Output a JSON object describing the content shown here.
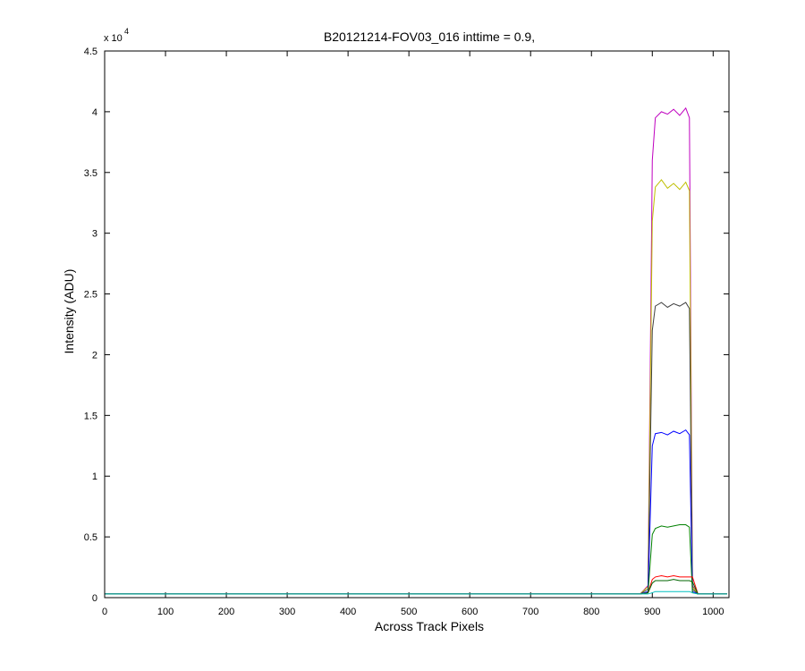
{
  "chart_data": {
    "type": "line",
    "title": "B20121214-FOV03_016 inttime = 0.9,",
    "x_label": "Across Track Pixels",
    "y_label": "Intensity (ADU)",
    "y_multiplier": "x 10",
    "y_exponent": "4",
    "x": [
      0,
      300,
      600,
      880,
      893,
      900,
      905,
      915,
      925,
      935,
      945,
      955,
      961,
      966,
      975,
      1023
    ],
    "series": [
      {
        "color": "#bf00bf",
        "values": [
          0.03,
          0.03,
          0.03,
          0.03,
          0.1,
          3.6,
          3.95,
          4.0,
          3.98,
          4.02,
          3.97,
          4.03,
          3.95,
          0.1,
          0.03,
          0.03
        ]
      },
      {
        "color": "#bfbf00",
        "values": [
          0.03,
          0.03,
          0.03,
          0.03,
          0.09,
          3.1,
          3.38,
          3.44,
          3.37,
          3.41,
          3.36,
          3.42,
          3.35,
          0.09,
          0.03,
          0.03
        ]
      },
      {
        "color": "#404040",
        "values": [
          0.03,
          0.03,
          0.03,
          0.03,
          0.07,
          2.2,
          2.4,
          2.43,
          2.39,
          2.42,
          2.4,
          2.43,
          2.38,
          0.07,
          0.03,
          0.03
        ]
      },
      {
        "color": "#0000ff",
        "values": [
          0.03,
          0.03,
          0.03,
          0.03,
          0.05,
          1.25,
          1.35,
          1.36,
          1.34,
          1.37,
          1.35,
          1.38,
          1.34,
          0.05,
          0.03,
          0.03
        ]
      },
      {
        "color": "#008000",
        "values": [
          0.03,
          0.03,
          0.03,
          0.03,
          0.04,
          0.52,
          0.57,
          0.59,
          0.58,
          0.59,
          0.6,
          0.6,
          0.58,
          0.04,
          0.03,
          0.03
        ]
      },
      {
        "color": "#ff0000",
        "values": [
          0.03,
          0.03,
          0.03,
          0.03,
          0.04,
          0.15,
          0.17,
          0.18,
          0.17,
          0.18,
          0.17,
          0.17,
          0.17,
          0.17,
          0.03,
          0.03
        ]
      },
      {
        "color": "#006400",
        "values": [
          0.03,
          0.03,
          0.03,
          0.03,
          0.04,
          0.12,
          0.14,
          0.14,
          0.14,
          0.15,
          0.14,
          0.14,
          0.14,
          0.13,
          0.03,
          0.03
        ]
      },
      {
        "color": "#00bfbf",
        "values": [
          0.03,
          0.03,
          0.03,
          0.03,
          0.03,
          0.04,
          0.05,
          0.05,
          0.05,
          0.05,
          0.05,
          0.05,
          0.05,
          0.04,
          0.03,
          0.03
        ]
      }
    ],
    "xlim": [
      0,
      1026
    ],
    "ylim": [
      0,
      4.5
    ],
    "xticks": [
      0,
      100,
      200,
      300,
      400,
      500,
      600,
      700,
      800,
      900,
      1000
    ],
    "yticks": [
      0,
      0.5,
      1,
      1.5,
      2,
      2.5,
      3,
      3.5,
      4,
      4.5
    ],
    "grid": false
  }
}
